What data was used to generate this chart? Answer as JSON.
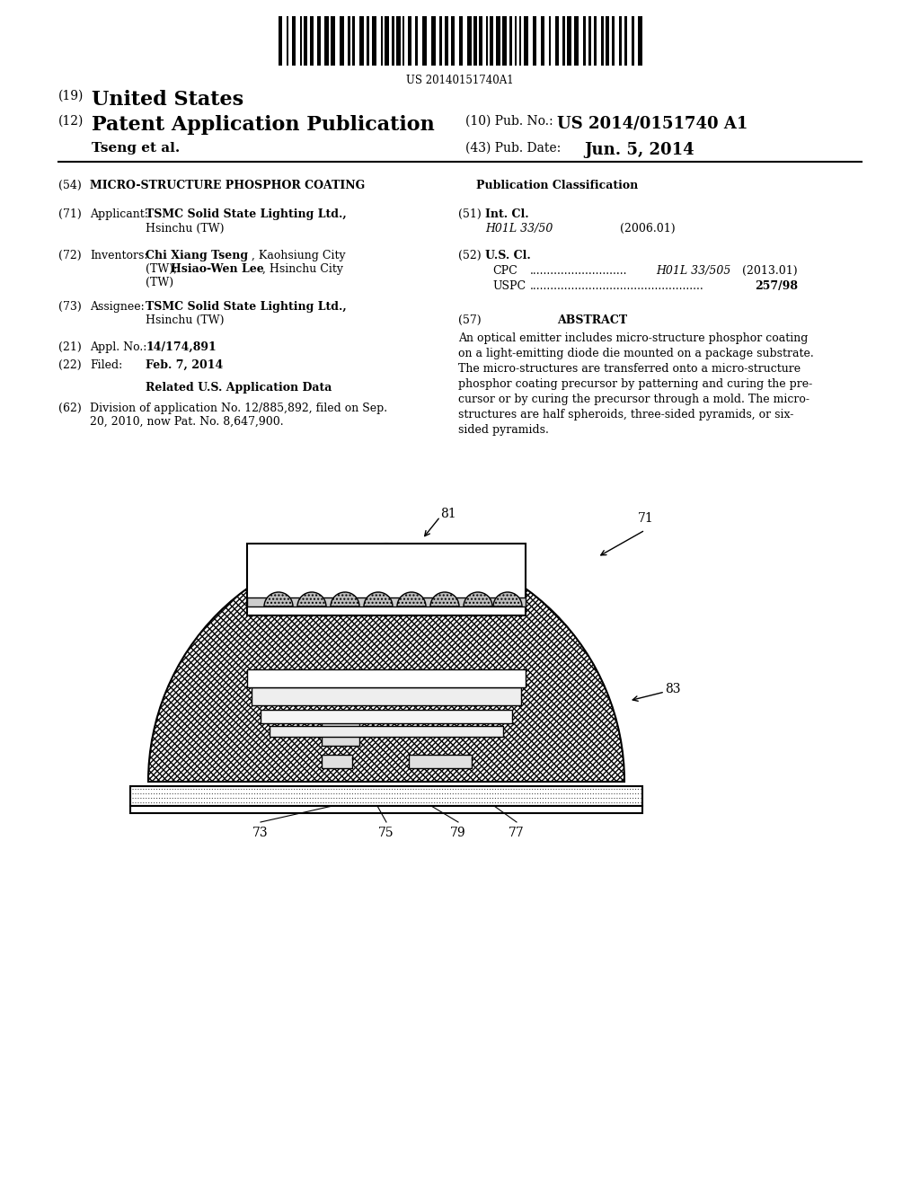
{
  "title": "Micro-Structure Phosphor Coating",
  "barcode_text": "US 20140151740A1",
  "header_19": "(19) United States",
  "header_12": "(12) Patent Application Publication",
  "header_pub_no_label": "(10) Pub. No.:",
  "header_pub_no": "US 2014/0151740 A1",
  "header_authors": "Tseng et al.",
  "header_date_label": "(43) Pub. Date:",
  "header_date": "Jun. 5, 2014",
  "field54_label": "(54)",
  "field54": "MICRO-STRUCTURE PHOSPHOR COATING",
  "field71_label": "(71)",
  "field71_title": "Applicant:",
  "field71_name": "TSMC Solid State Lighting Ltd.,",
  "field71_addr": "Hsinchu (TW)",
  "field72_label": "(72)",
  "field72_title": "Inventors:",
  "field72_name": "Chi Xiang Tseng, Kaohsiung City",
  "field72_name2": "(TW); Hsiao-Wen Lee, Hsinchu City",
  "field72_name3": "(TW)",
  "field73_label": "(73)",
  "field73_title": "Assignee:",
  "field73_name": "TSMC Solid State Lighting Ltd.,",
  "field73_addr": "Hsinchu (TW)",
  "field21_label": "(21)",
  "field21_title": "Appl. No.:",
  "field21_no": "14/174,891",
  "field22_label": "(22)",
  "field22_title": "Filed:",
  "field22_date": "Feb. 7, 2014",
  "related_title": "Related U.S. Application Data",
  "field62_label": "(62)",
  "field62_text": "Division of application No. 12/885,892, filed on Sep.\n20, 2010, now Pat. No. 8,647,900.",
  "pub_class_title": "Publication Classification",
  "field51_label": "(51)",
  "field51_title": "Int. Cl.",
  "field51_class": "H01L 33/50",
  "field51_year": "(2006.01)",
  "field52_label": "(52)",
  "field52_title": "U.S. Cl.",
  "field52_cpc_label": "CPC",
  "field52_cpc_dots": "....................................",
  "field52_cpc_class": "H01L 33/505",
  "field52_cpc_year": "(2013.01)",
  "field52_uspc_label": "USPC",
  "field52_uspc_dots": ".........................................................",
  "field52_uspc_class": "257/98",
  "field57_label": "(57)",
  "field57_title": "ABSTRACT",
  "abstract_text": "An optical emitter includes micro-structure phosphor coating on a light-emitting diode die mounted on a package substrate. The micro-structures are transferred onto a micro-structure phosphor coating precursor by patterning and curing the precursor or by curing the precursor through a mold. The microstructures are half spheroids, three-sided pyramids, or sixsided pyramids.",
  "diagram_label_71": "71",
  "diagram_label_81": "81",
  "diagram_label_83": "83",
  "diagram_label_73": "73",
  "diagram_label_75": "75",
  "diagram_label_79": "79",
  "diagram_label_77": "77",
  "bg_color": "#ffffff",
  "text_color": "#000000",
  "line_color": "#000000"
}
